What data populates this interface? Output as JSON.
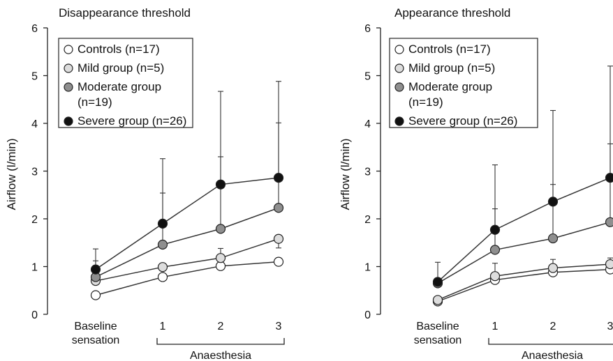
{
  "chart_data": [
    {
      "type": "line",
      "title": "Disappearance threshold",
      "xlabel": "Anaesthesia",
      "ylabel": "Airflow (l/min)",
      "categories": [
        "Baseline sensation",
        "1",
        "2",
        "3"
      ],
      "category_lines": [
        [
          "Baseline",
          "sensation"
        ],
        [
          "1"
        ],
        [
          "2"
        ],
        [
          "3"
        ]
      ],
      "ylim": [
        0,
        6
      ],
      "yticks": [
        "0",
        "1",
        "2",
        "3",
        "4",
        "5",
        "6"
      ],
      "grid": false,
      "legend_position": "top-left",
      "series": [
        {
          "name": "Controls (n=17)",
          "name_lines": [
            "Controls (n=17)"
          ],
          "color": "#ffffff",
          "values": [
            0.4,
            0.78,
            1.01,
            1.1
          ],
          "error_upper": [
            null,
            null,
            null,
            null
          ]
        },
        {
          "name": "Mild group (n=5)",
          "name_lines": [
            "Mild group (n=5)"
          ],
          "color": "#dddddd",
          "values": [
            0.7,
            0.99,
            1.18,
            1.58
          ],
          "error_upper": [
            null,
            null,
            1.38,
            1.39
          ]
        },
        {
          "name": "Moderate group (n=19)",
          "name_lines": [
            "Moderate group",
            "(n=19)"
          ],
          "color": "#8f8f8f",
          "values": [
            0.78,
            1.46,
            1.79,
            2.23
          ],
          "error_upper": [
            1.12,
            2.54,
            3.3,
            4.01
          ]
        },
        {
          "name": "Severe group (n=26)",
          "name_lines": [
            "Severe group (n=26)"
          ],
          "color": "#111111",
          "values": [
            0.94,
            1.9,
            2.72,
            2.86
          ],
          "error_upper": [
            1.37,
            3.26,
            4.67,
            4.88
          ]
        }
      ]
    },
    {
      "type": "line",
      "title": "Appearance threshold",
      "xlabel": "Anaesthesia",
      "ylabel": "Airflow (l/min)",
      "categories": [
        "Baseline sensation",
        "1",
        "2",
        "3"
      ],
      "category_lines": [
        [
          "Baseline",
          "sensation"
        ],
        [
          "1"
        ],
        [
          "2"
        ],
        [
          "3"
        ]
      ],
      "ylim": [
        0,
        6
      ],
      "yticks": [
        "0",
        "1",
        "2",
        "3",
        "4",
        "5",
        "6"
      ],
      "grid": false,
      "legend_position": "top-left",
      "series": [
        {
          "name": "Controls (n=17)",
          "name_lines": [
            "Controls (n=17)"
          ],
          "color": "#ffffff",
          "values": [
            0.27,
            0.72,
            0.88,
            0.94
          ],
          "error_upper": [
            null,
            null,
            null,
            null
          ]
        },
        {
          "name": "Mild group (n=5)",
          "name_lines": [
            "Mild group (n=5)"
          ],
          "color": "#dddddd",
          "values": [
            0.3,
            0.8,
            0.97,
            1.05
          ],
          "error_upper": [
            null,
            1.07,
            1.15,
            1.18
          ]
        },
        {
          "name": "Moderate group (n=19)",
          "name_lines": [
            "Moderate group",
            "(n=19)"
          ],
          "color": "#8f8f8f",
          "values": [
            0.65,
            1.35,
            1.59,
            1.93
          ],
          "error_upper": [
            null,
            2.21,
            2.72,
            3.57
          ]
        },
        {
          "name": "Severe group (n=26)",
          "name_lines": [
            "Severe group (n=26)"
          ],
          "color": "#111111",
          "values": [
            0.68,
            1.77,
            2.36,
            2.86
          ],
          "error_upper": [
            1.09,
            3.13,
            4.27,
            5.2
          ]
        }
      ]
    }
  ]
}
